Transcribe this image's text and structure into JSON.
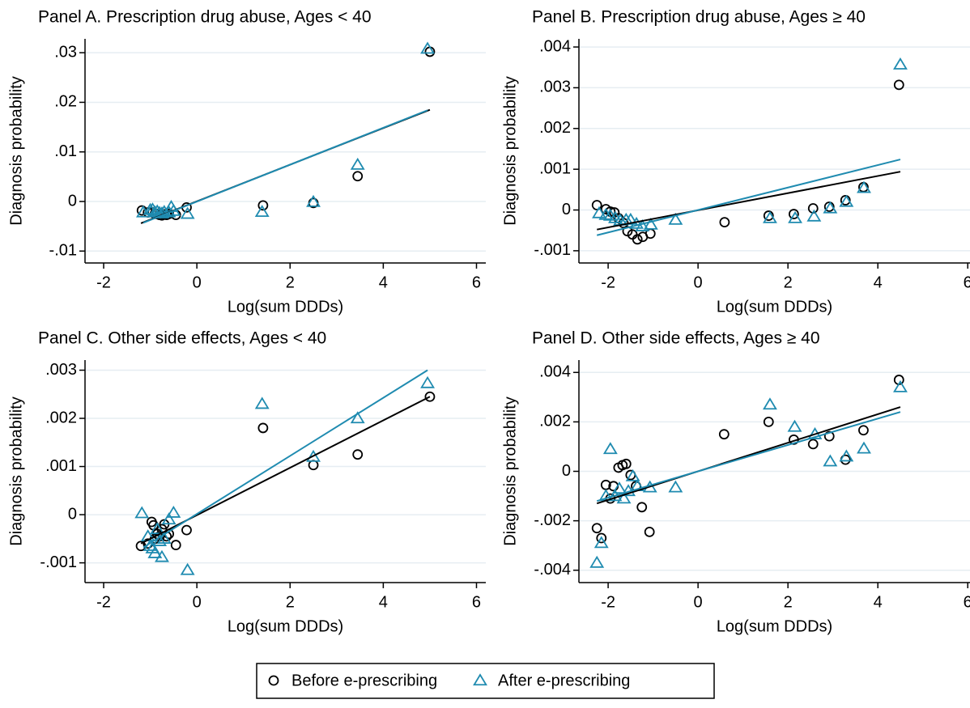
{
  "chart_data": [
    {
      "type": "scatter",
      "title": "Panel A. Prescription drug abuse, Ages < 40",
      "x_label": "Log(sum DDDs)",
      "y_label": "Diagnosis probability",
      "xlim": [
        -2.4,
        6.2
      ],
      "xticks": [
        -2,
        0,
        2,
        4,
        6
      ],
      "ylim": [
        -0.0124,
        0.0328
      ],
      "yticks": [
        {
          "value": -0.01,
          "label": "-.01"
        },
        0,
        {
          "value": 0.01,
          "label": ".01"
        },
        {
          "value": 0.02,
          "label": ".02"
        },
        {
          "value": 0.03,
          "label": ".03"
        }
      ],
      "grid": true,
      "series": [
        {
          "marker": "circle",
          "color": "#000000",
          "x": [
            -1.18,
            -1.05,
            -0.95,
            -0.9,
            -0.85,
            -0.8,
            -0.75,
            -0.7,
            -0.65,
            -0.6,
            -0.45,
            -0.22,
            1.42,
            2.5,
            3.45,
            5.0
          ],
          "values": [
            -0.0018,
            -0.0022,
            -0.0022,
            -0.0025,
            -0.0025,
            -0.0027,
            -0.0028,
            -0.0026,
            -0.0027,
            -0.0025,
            -0.0027,
            -0.0012,
            -0.0008,
            -0.0003,
            0.0051,
            0.0302
          ],
          "fit": {
            "x": [
              -1.2,
              5.0
            ],
            "y": [
              -0.0044,
              0.0185
            ]
          }
        },
        {
          "marker": "triangle",
          "color": "#1f8bb0",
          "x": [
            -1.15,
            -1.0,
            -0.95,
            -0.9,
            -0.85,
            -0.8,
            -0.75,
            -0.7,
            -0.6,
            -0.55,
            -0.5,
            -0.2,
            1.4,
            2.5,
            3.45,
            4.95
          ],
          "values": [
            -0.0022,
            -0.0017,
            -0.0016,
            -0.0022,
            -0.002,
            -0.0023,
            -0.0024,
            -0.0021,
            -0.0022,
            -0.0011,
            -0.0019,
            -0.0025,
            -0.0021,
            -0.0001,
            0.0074,
            0.0308
          ],
          "fit": {
            "x": [
              -1.15,
              4.95
            ],
            "y": [
              -0.0043,
              0.0184
            ]
          }
        }
      ]
    },
    {
      "type": "scatter",
      "title": "Panel B. Prescription drug abuse, Ages ≥ 40",
      "x_label": "Log(sum DDDs)",
      "y_label": "Diagnosis probability",
      "xlim": [
        -2.65,
        6.05
      ],
      "xticks": [
        -2,
        0,
        2,
        4,
        6
      ],
      "ylim": [
        -0.0013,
        0.0042
      ],
      "yticks": [
        {
          "value": -0.001,
          "label": "-.001"
        },
        0,
        {
          "value": 0.001,
          "label": ".001"
        },
        {
          "value": 0.002,
          "label": ".002"
        },
        {
          "value": 0.003,
          "label": ".003"
        },
        {
          "value": 0.004,
          "label": ".004"
        }
      ],
      "grid": true,
      "series": [
        {
          "marker": "circle",
          "color": "#000000",
          "x": [
            -2.25,
            -2.05,
            -1.95,
            -1.86,
            -1.77,
            -1.66,
            -1.57,
            -1.46,
            -1.35,
            -1.23,
            -1.06,
            0.59,
            1.57,
            2.13,
            2.56,
            2.92,
            3.28,
            3.68,
            4.47
          ],
          "values": [
            0.00012,
            2e-05,
            -4e-05,
            -6e-05,
            -0.0002,
            -0.00032,
            -0.00052,
            -0.0006,
            -0.00072,
            -0.00066,
            -0.00058,
            -0.0003,
            -0.00014,
            -0.0001,
            4e-05,
            8e-05,
            0.00024,
            0.00056,
            0.00307
          ],
          "fit": {
            "x": [
              -2.25,
              4.5
            ],
            "y": [
              -0.00048,
              0.00094
            ]
          }
        },
        {
          "marker": "triangle",
          "color": "#1f8bb0",
          "x": [
            -2.2,
            -2.05,
            -1.95,
            -1.84,
            -1.73,
            -1.6,
            -1.5,
            -1.37,
            -1.24,
            -1.05,
            -0.5,
            1.6,
            2.16,
            2.58,
            2.94,
            3.3,
            3.69,
            4.5
          ],
          "values": [
            -8e-05,
            -0.00012,
            -0.00014,
            -0.0002,
            -0.00026,
            -0.00024,
            -0.00024,
            -0.00034,
            -0.0004,
            -0.00036,
            -0.00024,
            -0.0002,
            -0.0002,
            -0.00016,
            4e-05,
            0.0002,
            0.00054,
            0.00357
          ],
          "fit": {
            "x": [
              -2.25,
              4.5
            ],
            "y": [
              -0.00062,
              0.00124
            ]
          }
        }
      ]
    },
    {
      "type": "scatter",
      "title": "Panel C. Other side effects, Ages < 40",
      "x_label": "Log(sum DDDs)",
      "y_label": "Diagnosis probability",
      "xlim": [
        -2.4,
        6.2
      ],
      "xticks": [
        -2,
        0,
        2,
        4,
        6
      ],
      "ylim": [
        -0.00141,
        0.00321
      ],
      "yticks": [
        {
          "value": -0.001,
          "label": "-.001"
        },
        0,
        {
          "value": 0.001,
          "label": ".001"
        },
        {
          "value": 0.002,
          "label": ".002"
        },
        {
          "value": 0.003,
          "label": ".003"
        }
      ],
      "grid": true,
      "series": [
        {
          "marker": "circle",
          "color": "#000000",
          "x": [
            -1.2,
            -1.05,
            -0.97,
            -0.93,
            -0.9,
            -0.85,
            -0.8,
            -0.75,
            -0.7,
            -0.65,
            -0.6,
            -0.45,
            -0.22,
            1.42,
            2.5,
            3.45,
            5.0
          ],
          "values": [
            -0.00065,
            -0.0006,
            -0.00015,
            -0.00022,
            -0.0005,
            -0.0004,
            -0.00045,
            -0.0003,
            -0.0002,
            -0.00045,
            -0.0004,
            -0.00063,
            -0.00032,
            0.0018,
            0.00103,
            0.00125,
            0.00245
          ],
          "fit": {
            "x": [
              -1.2,
              5.0
            ],
            "y": [
              -0.0006,
              0.00245
            ]
          }
        },
        {
          "marker": "triangle",
          "color": "#1f8bb0",
          "x": [
            -1.18,
            -1.05,
            -1.0,
            -0.95,
            -0.9,
            -0.85,
            -0.8,
            -0.75,
            -0.7,
            -0.6,
            -0.5,
            -0.2,
            1.4,
            2.5,
            3.45,
            4.95
          ],
          "values": [
            3e-05,
            -0.00045,
            -0.00065,
            -0.0007,
            -0.0008,
            -0.0003,
            -0.00055,
            -0.00088,
            -0.0005,
            -0.0001,
            4e-05,
            -0.00115,
            0.0023,
            0.0012,
            0.002,
            0.00273
          ],
          "fit": {
            "x": [
              -1.15,
              4.95
            ],
            "y": [
              -0.00068,
              0.003
            ]
          }
        }
      ]
    },
    {
      "type": "scatter",
      "title": "Panel D. Other side effects, Ages ≥ 40",
      "x_label": "Log(sum DDDs)",
      "y_label": "Diagnosis probability",
      "xlim": [
        -2.65,
        6.05
      ],
      "xticks": [
        -2,
        0,
        2,
        4,
        6
      ],
      "ylim": [
        -0.0045,
        0.0045
      ],
      "yticks": [
        {
          "value": -0.004,
          "label": "-.004"
        },
        {
          "value": -0.002,
          "label": "-.002"
        },
        0,
        {
          "value": 0.002,
          "label": ".002"
        },
        {
          "value": 0.004,
          "label": ".004"
        }
      ],
      "grid": true,
      "series": [
        {
          "marker": "circle",
          "color": "#000000",
          "x": [
            -2.25,
            -2.15,
            -2.05,
            -1.95,
            -1.88,
            -1.77,
            -1.68,
            -1.6,
            -1.5,
            -1.38,
            -1.25,
            -1.08,
            0.58,
            1.57,
            2.13,
            2.56,
            2.92,
            3.28,
            3.68,
            4.47
          ],
          "values": [
            -0.0023,
            -0.0027,
            -0.00055,
            -0.0011,
            -0.0006,
            0.00015,
            0.00025,
            0.0003,
            -0.00015,
            -0.0006,
            -0.00145,
            -0.00245,
            0.0015,
            0.002,
            0.00128,
            0.0011,
            0.00142,
            0.00047,
            0.00166,
            0.0037
          ],
          "fit": {
            "x": [
              -2.25,
              4.5
            ],
            "y": [
              -0.0013,
              0.0026
            ]
          }
        },
        {
          "marker": "triangle",
          "color": "#1f8bb0",
          "x": [
            -2.25,
            -2.15,
            -2.05,
            -1.95,
            -1.85,
            -1.75,
            -1.65,
            -1.55,
            -1.45,
            -1.35,
            -1.07,
            -0.5,
            1.6,
            2.15,
            2.6,
            2.94,
            3.3,
            3.69,
            4.5
          ],
          "values": [
            -0.0037,
            -0.0029,
            -0.001,
            0.0009,
            -0.001,
            -0.0007,
            -0.0011,
            -0.0008,
            -0.0002,
            -0.0006,
            -0.00065,
            -0.00065,
            0.0027,
            0.0018,
            0.0015,
            0.0004,
            0.0006,
            0.00092,
            0.0034
          ],
          "fit": {
            "x": [
              -2.25,
              4.5
            ],
            "y": [
              -0.0012,
              0.0024
            ]
          }
        }
      ]
    }
  ],
  "legend": [
    {
      "name": "Before e-prescribing",
      "color": "#000000",
      "marker": "circle"
    },
    {
      "name": "After e-prescribing",
      "color": "#1f8bb0",
      "marker": "triangle"
    }
  ]
}
